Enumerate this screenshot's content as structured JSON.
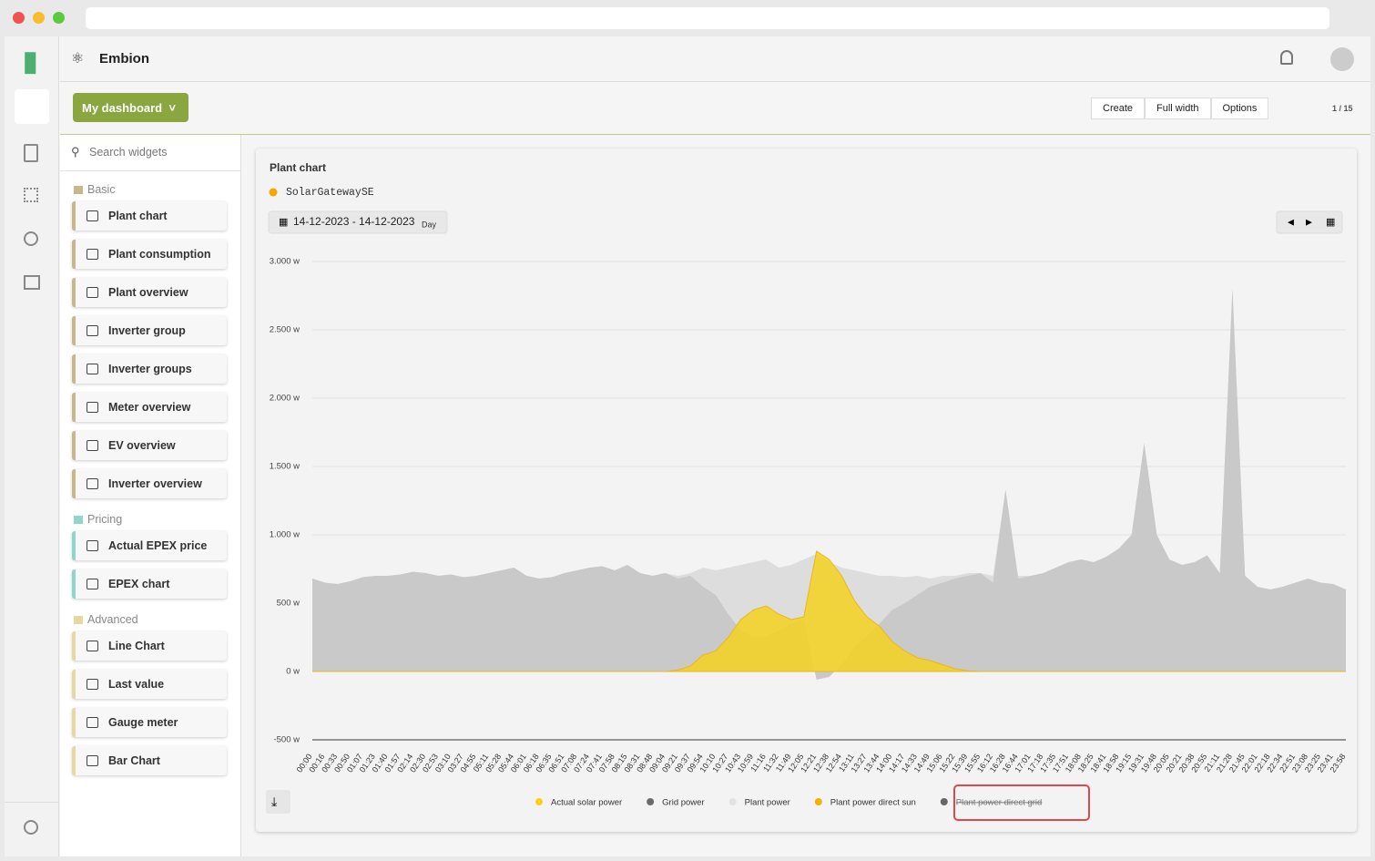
{
  "workspace": "Embion",
  "dashboard_button": "My dashboard",
  "toolbar": [
    "Create",
    "Full width",
    "Options"
  ],
  "page_counter": "1 / 15",
  "search_placeholder": "Search widgets",
  "widget_groups": [
    {
      "name": "Basic",
      "color": "#c9b78c",
      "items": [
        "Plant chart",
        "Plant consumption",
        "Plant overview",
        "Inverter group",
        "Inverter groups",
        "Meter overview",
        "EV overview",
        "Inverter overview"
      ]
    },
    {
      "name": "Pricing",
      "color": "#8fd6c9",
      "items": [
        "Actual EPEX price",
        "EPEX chart"
      ]
    },
    {
      "name": "Advanced",
      "color": "#e6d8a0",
      "items": [
        "Line Chart",
        "Last value",
        "Gauge meter",
        "Bar Chart"
      ]
    }
  ],
  "chart_data": {
    "type": "area",
    "title": "Plant chart",
    "source": "SolarGatewaySE",
    "date_range": "14-12-2023 - 14-12-2023",
    "period": "Day",
    "ylim": [
      -500,
      3000
    ],
    "yticks": [
      {
        "value": 3000,
        "label": "3.000 w"
      },
      {
        "value": 2500,
        "label": "2.500 w"
      },
      {
        "value": 2000,
        "label": "2.000 w"
      },
      {
        "value": 1500,
        "label": "1.500 w"
      },
      {
        "value": 1000,
        "label": "1.000 w"
      },
      {
        "value": 500,
        "label": "500 w"
      },
      {
        "value": 0,
        "label": "0 w"
      },
      {
        "value": -500,
        "label": "-500 w"
      }
    ],
    "grid": true,
    "categories": [
      "00:00",
      "00:16",
      "00:33",
      "00:50",
      "01:07",
      "01:23",
      "01:40",
      "01:57",
      "02:14",
      "02:30",
      "02:53",
      "03:10",
      "03:27",
      "04:55",
      "05:11",
      "05:28",
      "05:44",
      "06:01",
      "06:18",
      "06:35",
      "06:51",
      "07:08",
      "07:24",
      "07:41",
      "07:58",
      "08:15",
      "08:31",
      "08:48",
      "09:04",
      "09:21",
      "09:37",
      "09:54",
      "10:10",
      "10:27",
      "10:43",
      "10:59",
      "11:16",
      "11:32",
      "11:49",
      "12:05",
      "12:21",
      "12:38",
      "12:54",
      "13:11",
      "13:27",
      "13:44",
      "14:00",
      "14:17",
      "14:33",
      "14:49",
      "15:06",
      "15:22",
      "15:39",
      "15:55",
      "16:12",
      "16:28",
      "16:44",
      "17:01",
      "17:18",
      "17:35",
      "17:51",
      "18:08",
      "18:25",
      "18:41",
      "18:58",
      "19:15",
      "19:31",
      "19:48",
      "20:05",
      "20:21",
      "20:38",
      "20:55",
      "21:11",
      "21:28",
      "21:45",
      "22:01",
      "22:18",
      "22:34",
      "22:51",
      "23:08",
      "23:25",
      "23:41",
      "23:58"
    ],
    "series": [
      {
        "name": "Actual solar power",
        "color": "#f4d21f",
        "values": [
          0,
          0,
          0,
          0,
          0,
          0,
          0,
          0,
          0,
          0,
          0,
          0,
          0,
          0,
          0,
          0,
          0,
          0,
          0,
          0,
          0,
          0,
          0,
          0,
          0,
          0,
          0,
          0,
          0,
          10,
          40,
          120,
          150,
          250,
          380,
          450,
          480,
          420,
          380,
          400,
          880,
          820,
          700,
          520,
          400,
          330,
          220,
          150,
          100,
          80,
          50,
          20,
          5,
          0,
          0,
          0,
          0,
          0,
          0,
          0,
          0,
          0,
          0,
          0,
          0,
          0,
          0,
          0,
          0,
          0,
          0,
          0,
          0,
          0,
          0,
          0,
          0,
          0,
          0,
          0,
          0,
          0,
          0
        ]
      },
      {
        "name": "Grid power",
        "color": "#6b6b6b",
        "values": [
          680,
          650,
          640,
          660,
          690,
          700,
          700,
          710,
          730,
          720,
          700,
          710,
          690,
          700,
          720,
          740,
          760,
          700,
          680,
          690,
          720,
          740,
          760,
          770,
          740,
          780,
          720,
          700,
          720,
          680,
          700,
          620,
          560,
          420,
          300,
          250,
          260,
          300,
          350,
          380,
          -60,
          -40,
          50,
          180,
          260,
          350,
          450,
          500,
          560,
          620,
          650,
          680,
          700,
          720,
          650,
          1330,
          680,
          700,
          720,
          760,
          800,
          820,
          800,
          840,
          900,
          1000,
          1670,
          1000,
          820,
          780,
          800,
          850,
          720,
          2800,
          700,
          620,
          600,
          620,
          650,
          680,
          650,
          640,
          600
        ]
      },
      {
        "name": "Plant power",
        "color": "#dddddd",
        "values": [
          680,
          650,
          640,
          660,
          690,
          700,
          700,
          710,
          730,
          720,
          700,
          710,
          690,
          700,
          720,
          740,
          760,
          700,
          680,
          690,
          720,
          740,
          760,
          770,
          740,
          780,
          720,
          700,
          720,
          700,
          720,
          760,
          740,
          760,
          780,
          800,
          820,
          760,
          780,
          820,
          860,
          800,
          760,
          740,
          720,
          700,
          700,
          690,
          700,
          680,
          700,
          700,
          720,
          720,
          700,
          1330,
          700,
          700,
          720,
          760,
          800,
          820,
          800,
          840,
          900,
          1000,
          1670,
          1000,
          820,
          780,
          800,
          850,
          720,
          2800,
          700,
          620,
          600,
          620,
          650,
          680,
          650,
          640,
          600
        ]
      },
      {
        "name": "Plant power direct sun",
        "color": "#f0b400"
      },
      {
        "name": "Plant power direct grid",
        "color": "#666666",
        "hidden": true
      }
    ]
  }
}
